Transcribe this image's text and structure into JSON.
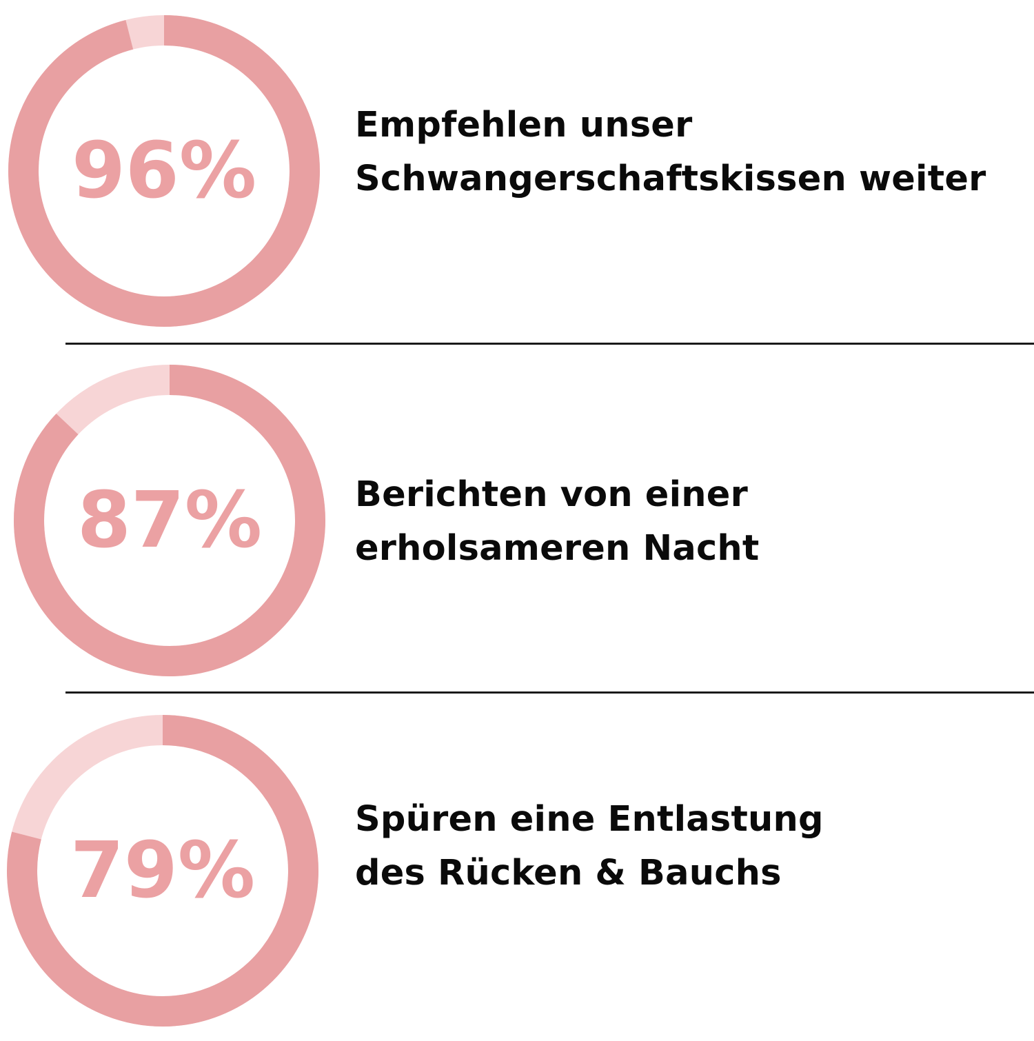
{
  "colors": {
    "filled": "#e8a0a2",
    "remaining": "#f7d5d6",
    "percent_text": "#eba1a3",
    "text": "#0a0a0a",
    "divider": "#1a1a1a",
    "background": "#ffffff"
  },
  "chart_data": [
    {
      "type": "pie",
      "style": "donut",
      "value": 96,
      "max": 100,
      "label": "96%",
      "caption_lines": [
        "Empfehlen unser",
        "Schwangerschaftskissen weiter"
      ]
    },
    {
      "type": "pie",
      "style": "donut",
      "value": 87,
      "max": 100,
      "label": "87%",
      "caption_lines": [
        "Berichten von einer",
        "erholsameren Nacht"
      ]
    },
    {
      "type": "pie",
      "style": "donut",
      "value": 79,
      "max": 100,
      "label": "79%",
      "caption_lines": [
        "Spüren eine Entlastung",
        "des Rücken & Bauchs"
      ]
    }
  ]
}
